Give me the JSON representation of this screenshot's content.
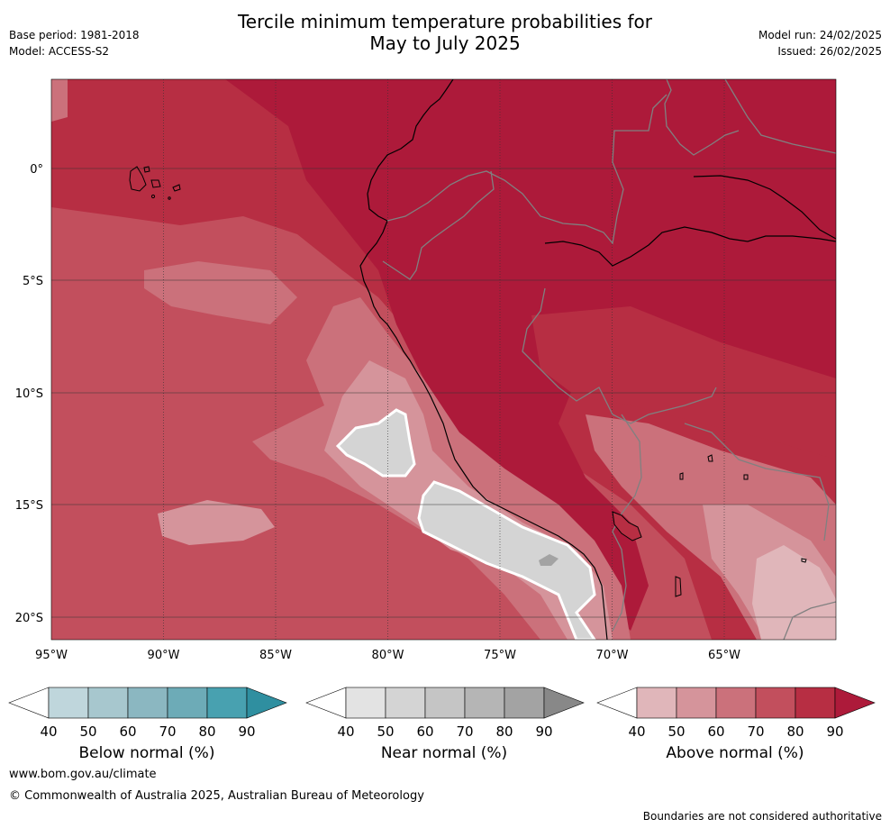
{
  "header": {
    "title_line1": "Tercile minimum temperature probabilities for",
    "title_line2": "May to July 2025",
    "base_period": "Base period: 1981-2018",
    "model": "Model: ACCESS-S2",
    "model_run": "Model run: 24/02/2025",
    "issued": "Issued: 26/02/2025"
  },
  "map": {
    "lon_labels": [
      "95°W",
      "90°W",
      "85°W",
      "80°W",
      "75°W",
      "70°W",
      "65°W"
    ],
    "lat_labels": [
      "0°",
      "5°S",
      "10°S",
      "15°S",
      "20°S"
    ]
  },
  "colorbars": [
    {
      "label": "Below normal (%)",
      "ticks": [
        "40",
        "50",
        "60",
        "70",
        "80",
        "90"
      ],
      "colors": [
        "#bfd6dc",
        "#a7c7ce",
        "#8bb7c1",
        "#6dabb7",
        "#48a1b0",
        "#2f8fa0"
      ]
    },
    {
      "label": "Near normal (%)",
      "ticks": [
        "40",
        "50",
        "60",
        "70",
        "80",
        "90"
      ],
      "colors": [
        "#e3e3e3",
        "#d4d4d4",
        "#c5c5c5",
        "#b5b5b5",
        "#a3a3a3",
        "#888888"
      ]
    },
    {
      "label": "Above normal (%)",
      "ticks": [
        "40",
        "50",
        "60",
        "70",
        "80",
        "90"
      ],
      "colors": [
        "#e0b6ba",
        "#d5949b",
        "#cb717b",
        "#c24f5d",
        "#b72e43",
        "#ad1a3a"
      ]
    }
  ],
  "footer": {
    "url": "www.bom.gov.au/climate",
    "copyright": "© Commonwealth of Australia 2025, Australian Bureau of Meteorology",
    "disclaimer": "Boundaries are not considered authoritative"
  }
}
